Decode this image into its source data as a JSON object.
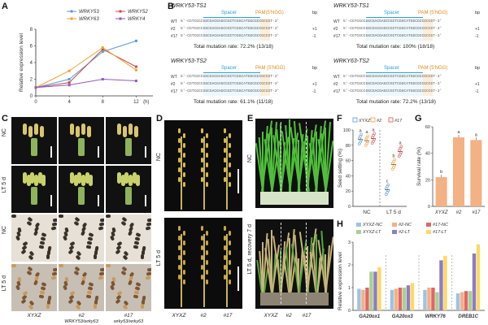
{
  "panels": {
    "A": "A",
    "B": "B",
    "C": "C",
    "D": "D",
    "E": "E",
    "F": "F",
    "G": "G",
    "H": "H"
  },
  "chart_data": [
    {
      "id": "A",
      "type": "line",
      "title": "",
      "xlabel": "(h)",
      "ylabel": "Relative expression level",
      "x": [
        0,
        4,
        8,
        12
      ],
      "ylim": [
        0,
        8
      ],
      "yticks": [
        0,
        2,
        4,
        6,
        8
      ],
      "series": [
        {
          "name": "WRKY53",
          "color": "#5b9bd5",
          "values": [
            1.0,
            2.0,
            5.3,
            6.6
          ]
        },
        {
          "name": "WRKY52",
          "color": "#c0504d",
          "values": [
            1.0,
            1.6,
            5.6,
            3.5
          ]
        },
        {
          "name": "WRKY63",
          "color": "#f0a030",
          "values": [
            1.0,
            3.0,
            5.8,
            3.1
          ]
        },
        {
          "name": "WRKY4",
          "color": "#8e5bc2",
          "values": [
            1.0,
            1.3,
            2.0,
            1.8
          ]
        }
      ]
    },
    {
      "id": "F",
      "type": "scatter",
      "xlabel": "",
      "ylabel": "Seed setting (%)",
      "ylim": [
        0,
        100
      ],
      "yticks": [
        0,
        20,
        40,
        60,
        80,
        100
      ],
      "groups": [
        "NC",
        "LT 5 d"
      ],
      "series": [
        {
          "name": "XYXZ",
          "color": "#5b9bd5",
          "values": [
            88,
            22
          ]
        },
        {
          "name": "#2",
          "color": "#f0a030",
          "values": [
            86,
            55
          ]
        },
        {
          "name": "#17",
          "color": "#e05050",
          "values": [
            89,
            72
          ]
        }
      ],
      "letters": [
        "a",
        "a",
        "a",
        "c",
        "b",
        "a"
      ]
    },
    {
      "id": "G",
      "type": "bar",
      "xlabel": "",
      "ylabel": "Survival rate (%)",
      "ylim": [
        0,
        60
      ],
      "yticks": [
        0,
        20,
        40,
        60
      ],
      "categories": [
        "XYXZ",
        "#2",
        "#17"
      ],
      "values": [
        22,
        52,
        50
      ],
      "color": "#f4b183",
      "letters": [
        "b",
        "a",
        "a"
      ]
    },
    {
      "id": "H",
      "type": "bar",
      "xlabel": "",
      "ylabel": "Relative expression level",
      "ylim": [
        0,
        3
      ],
      "yticks": [
        0,
        1,
        2,
        3
      ],
      "categories": [
        "GA20ox1",
        "GA20ox3",
        "WRKY76",
        "DREB1C"
      ],
      "series": [
        {
          "name": "XYXZ-NC",
          "color": "#9dc3e6",
          "values": [
            0.95,
            0.9,
            0.9,
            0.75
          ]
        },
        {
          "name": "#2-NC",
          "color": "#f4b183",
          "values": [
            0.9,
            0.95,
            1.0,
            0.8
          ]
        },
        {
          "name": "#17-NC",
          "color": "#e06666",
          "values": [
            1.0,
            1.0,
            1.0,
            0.85
          ]
        },
        {
          "name": "XYXZ-LT",
          "color": "#a9d18e",
          "values": [
            1.7,
            1.0,
            0.8,
            0.85
          ]
        },
        {
          "name": "#2-LT",
          "color": "#8e7cc3",
          "values": [
            1.7,
            1.1,
            2.2,
            2.5
          ]
        },
        {
          "name": "#17-LT",
          "color": "#ffd966",
          "values": [
            1.9,
            1.2,
            2.4,
            2.9
          ]
        }
      ]
    }
  ],
  "panelB": {
    "blocks": [
      {
        "title": "WRKY53-TS1",
        "spacer": "Spacer",
        "pam": "PAM(5'NGG)",
        "bp": "bp",
        "rows": [
          "WT",
          "#2",
          "#17"
        ],
        "total": "Total mutation rate: 72.2% (13/18)"
      },
      {
        "title": "WRKY53-TS1",
        "spacer": "Spacer",
        "pam": "PAM (5'NGG)",
        "bp": "bp",
        "rows": [
          "WT",
          "#2",
          "#17"
        ],
        "total": "Total mutation rate: 100% (18/18)"
      },
      {
        "title": "WRKY53-TS2",
        "spacer": "Spacer",
        "pam": "PAM (5'NGG)",
        "bp": "bp",
        "rows": [
          "WT",
          "#2",
          "#17"
        ],
        "total": "Total mutation rate: 61.1% (11/18)"
      },
      {
        "title": "WRKY63-TS2",
        "spacer": "Spacer",
        "pam": "PAM (5'NGG)",
        "bp": "bp",
        "rows": [
          "WT",
          "#2",
          "#17"
        ],
        "total": "Total mutation rate: 72.2% (13/18)"
      }
    ],
    "seq": "5'-CGTCGCCGGCGACGAGCCGCTCGGCATGGCGCCGCCGT-3'"
  },
  "panelC": {
    "rows": [
      "NC",
      "LT 5 d",
      "NC",
      "LT 5 d"
    ],
    "cols": [
      "XYXZ",
      "#2",
      "#17"
    ],
    "sub": [
      "",
      "WRKY53/wrky63",
      "wrky53/wrky63"
    ]
  },
  "panelD": {
    "rows": [
      "NC",
      "LT 5 d"
    ],
    "cols": [
      "XYXZ",
      "#2",
      "#17"
    ]
  },
  "panelE": {
    "rows": [
      "NC",
      "LT 5 d, recovery 7 d"
    ],
    "cols": [
      "XYXZ",
      "#2",
      "#17"
    ]
  }
}
